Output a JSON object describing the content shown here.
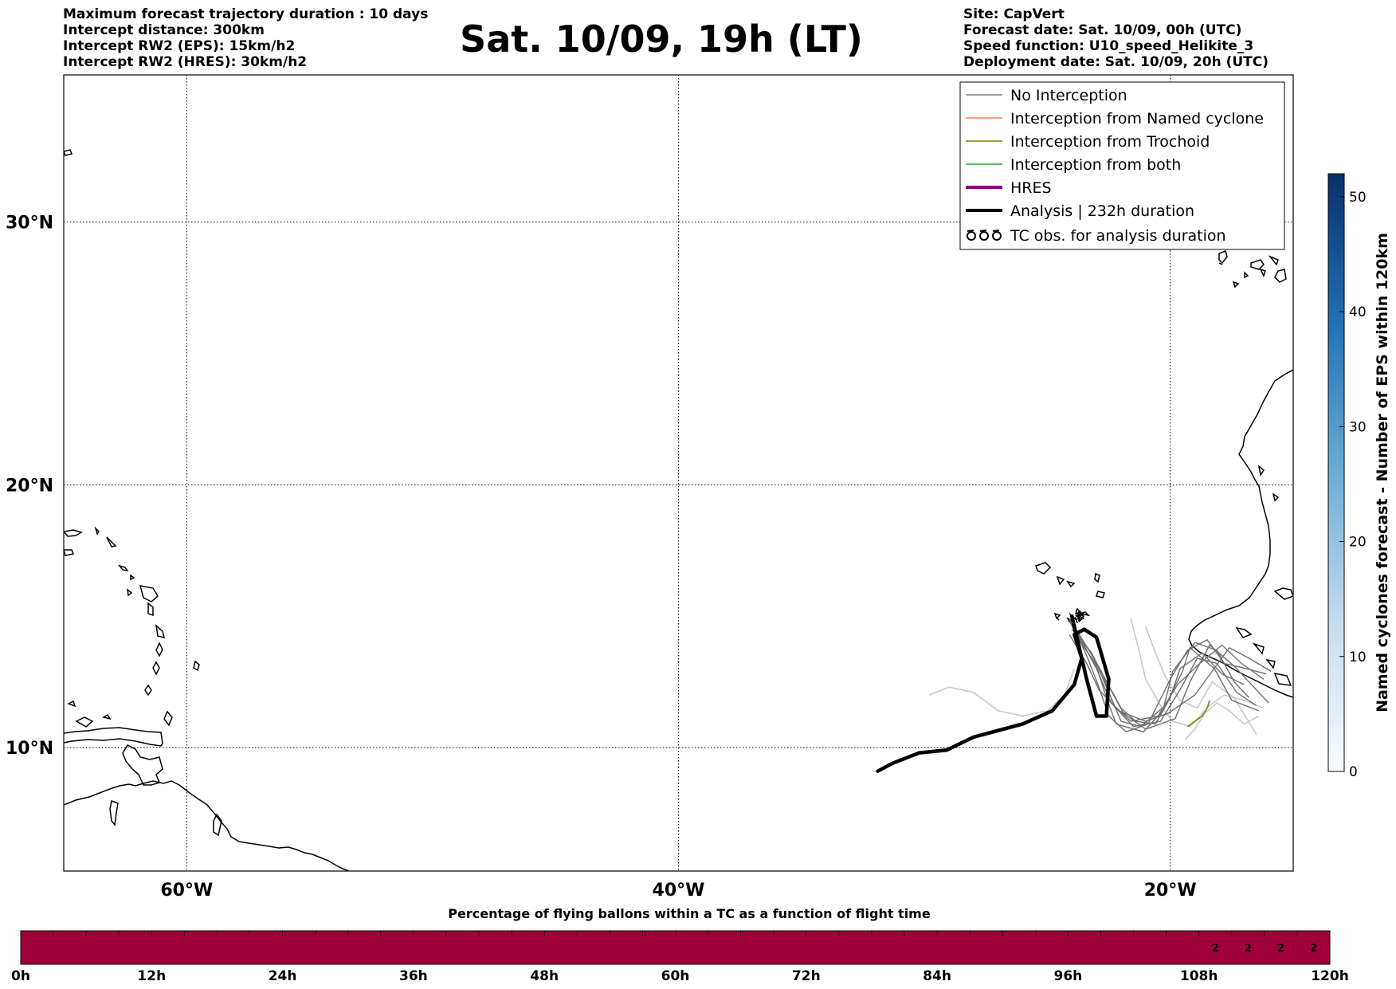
{
  "header": {
    "left": [
      "Maximum forecast trajectory duration : 10 days",
      "Intercept distance: 300km",
      "Intercept RW2 (EPS):  15km/h2",
      "Intercept RW2 (HRES): 30km/h2"
    ],
    "title": "Sat. 10/09, 19h (LT)",
    "right": [
      "Site: CapVert",
      "Forecast date: Sat. 10/09, 00h (UTC)",
      "Speed function: U10_speed_Helikite_3",
      "Deployment date: Sat. 10/09, 20h (UTC)"
    ]
  },
  "map": {
    "lon_range": [
      -65,
      -15
    ],
    "lat_range": [
      5.3,
      35.6
    ],
    "lon_ticks": [
      {
        "lon": -60,
        "label": "60°W"
      },
      {
        "lon": -40,
        "label": "40°W"
      },
      {
        "lon": -20,
        "label": "20°W"
      }
    ],
    "lat_ticks": [
      {
        "lat": 30,
        "label": "30°N"
      },
      {
        "lat": 20,
        "label": "20°N"
      },
      {
        "lat": 10,
        "label": "10°N"
      }
    ],
    "grid": true
  },
  "legend": {
    "placement": "top-right",
    "items": [
      {
        "label": "No Interception",
        "color": "#808080",
        "style": "thin-line"
      },
      {
        "label": "Interception from Named cyclone",
        "color": "#ff7f50",
        "style": "thin-line"
      },
      {
        "label": "Interception from Trochoid",
        "color": "#808000",
        "style": "thin-line"
      },
      {
        "label": "Interception from both",
        "color": "#2ca02c",
        "style": "thin-line"
      },
      {
        "label": "HRES",
        "color": "#8b008b",
        "style": "thick-line"
      },
      {
        "label": "Analysis | 232h duration",
        "color": "#000000",
        "style": "thick-line"
      },
      {
        "label": "TC obs. for analysis duration",
        "color": "#000000",
        "style": "tc-symbols"
      }
    ]
  },
  "chart_data": [
    {
      "type": "line",
      "name": "trajectories",
      "analysis_track": [
        [
          -31.9,
          9.1
        ],
        [
          -31.3,
          9.4
        ],
        [
          -30.2,
          9.8
        ],
        [
          -29.1,
          9.9
        ],
        [
          -28.0,
          10.4
        ],
        [
          -26.0,
          10.9
        ],
        [
          -24.8,
          11.4
        ],
        [
          -23.9,
          12.4
        ],
        [
          -23.6,
          13.4
        ],
        [
          -23.9,
          14.3
        ],
        [
          -23.5,
          14.5
        ],
        [
          -23.0,
          14.2
        ],
        [
          -22.5,
          12.6
        ],
        [
          -22.6,
          11.2
        ],
        [
          -23.0,
          11.2
        ],
        [
          -23.4,
          12.6
        ],
        [
          -23.8,
          14.2
        ],
        [
          -24.0,
          15.0
        ]
      ],
      "named_cyclone_tracks": [],
      "hres_tracks": [],
      "no_interception_tracks": [
        [
          [
            -24.1,
            14.9
          ],
          [
            -23.5,
            13.8
          ],
          [
            -22.8,
            12.9
          ],
          [
            -22.3,
            11.6
          ],
          [
            -21.5,
            10.8
          ],
          [
            -20.4,
            11.0
          ],
          [
            -19.6,
            12.2
          ],
          [
            -18.9,
            13.4
          ],
          [
            -18.1,
            13.2
          ],
          [
            -17.3,
            12.1
          ],
          [
            -16.5,
            11.6
          ]
        ],
        [
          [
            -24.0,
            14.6
          ],
          [
            -23.2,
            13.6
          ],
          [
            -22.6,
            12.5
          ],
          [
            -21.9,
            11.3
          ],
          [
            -21.0,
            10.7
          ],
          [
            -19.8,
            11.1
          ],
          [
            -19.2,
            12.5
          ],
          [
            -18.4,
            13.9
          ],
          [
            -17.4,
            13.1
          ],
          [
            -16.6,
            12.3
          ],
          [
            -16.0,
            11.7
          ]
        ],
        [
          [
            -24.1,
            14.8
          ],
          [
            -23.6,
            14.0
          ],
          [
            -23.0,
            13.1
          ],
          [
            -22.6,
            11.9
          ],
          [
            -22.2,
            10.9
          ],
          [
            -21.1,
            10.6
          ],
          [
            -20.3,
            11.4
          ],
          [
            -19.9,
            12.9
          ],
          [
            -19.0,
            14.0
          ],
          [
            -18.1,
            13.7
          ],
          [
            -17.4,
            12.5
          ],
          [
            -16.8,
            11.9
          ]
        ],
        [
          [
            -24.0,
            14.5
          ],
          [
            -23.3,
            13.7
          ],
          [
            -22.7,
            12.7
          ],
          [
            -22.0,
            11.5
          ],
          [
            -21.4,
            11.0
          ],
          [
            -20.6,
            10.9
          ],
          [
            -20.0,
            11.9
          ],
          [
            -19.6,
            13.0
          ],
          [
            -18.7,
            13.6
          ],
          [
            -17.9,
            12.8
          ],
          [
            -17.0,
            12.4
          ]
        ],
        [
          [
            -24.0,
            14.7
          ],
          [
            -23.4,
            13.5
          ],
          [
            -22.9,
            12.3
          ],
          [
            -22.5,
            11.2
          ],
          [
            -21.8,
            10.6
          ],
          [
            -20.9,
            10.9
          ],
          [
            -20.0,
            12.6
          ],
          [
            -19.3,
            13.7
          ],
          [
            -18.5,
            14.1
          ],
          [
            -17.8,
            13.2
          ],
          [
            -16.9,
            13.0
          ],
          [
            -16.1,
            12.8
          ]
        ],
        [
          [
            -23.9,
            14.6
          ],
          [
            -23.1,
            13.4
          ],
          [
            -22.5,
            12.1
          ],
          [
            -22.0,
            11.0
          ],
          [
            -21.2,
            10.8
          ],
          [
            -20.2,
            11.6
          ],
          [
            -19.5,
            12.9
          ],
          [
            -19.2,
            13.8
          ],
          [
            -18.2,
            13.0
          ],
          [
            -17.5,
            11.8
          ],
          [
            -16.4,
            11.4
          ]
        ],
        [
          [
            -23.8,
            14.4
          ],
          [
            -23.0,
            13.0
          ],
          [
            -22.4,
            11.7
          ],
          [
            -21.6,
            11.0
          ],
          [
            -20.5,
            11.2
          ],
          [
            -19.7,
            12.4
          ],
          [
            -18.8,
            13.2
          ],
          [
            -17.9,
            13.9
          ],
          [
            -17.1,
            13.2
          ],
          [
            -16.2,
            12.6
          ]
        ],
        [
          [
            -24.1,
            14.3
          ],
          [
            -23.4,
            13.2
          ],
          [
            -22.9,
            12.2
          ],
          [
            -22.1,
            11.4
          ],
          [
            -21.0,
            11.0
          ],
          [
            -20.1,
            11.3
          ],
          [
            -19.0,
            12.0
          ],
          [
            -18.3,
            12.9
          ],
          [
            -17.6,
            13.8
          ],
          [
            -16.8,
            13.4
          ],
          [
            -15.9,
            12.9
          ]
        ]
      ],
      "no_interception_light_tracks": [
        [
          [
            -29.8,
            12.0
          ],
          [
            -29.0,
            12.3
          ],
          [
            -28.0,
            12.1
          ],
          [
            -27.0,
            11.4
          ],
          [
            -26.0,
            11.2
          ],
          [
            -25.0,
            11.4
          ],
          [
            -24.3,
            12.0
          ],
          [
            -23.9,
            13.0
          ]
        ],
        [
          [
            -21.6,
            14.9
          ],
          [
            -21.3,
            13.8
          ],
          [
            -21.0,
            12.6
          ],
          [
            -20.4,
            11.6
          ],
          [
            -19.9,
            11.0
          ],
          [
            -19.2,
            10.8
          ],
          [
            -18.4,
            11.6
          ],
          [
            -17.8,
            12.0
          ],
          [
            -17.0,
            11.8
          ],
          [
            -16.2,
            11.5
          ]
        ],
        [
          [
            -19.4,
            10.3
          ],
          [
            -19.0,
            10.7
          ],
          [
            -18.6,
            11.3
          ],
          [
            -18.1,
            11.7
          ],
          [
            -17.6,
            11.4
          ],
          [
            -17.0,
            10.9
          ],
          [
            -16.4,
            11.2
          ]
        ],
        [
          [
            -21.0,
            14.6
          ],
          [
            -20.6,
            13.6
          ],
          [
            -20.2,
            12.7
          ],
          [
            -19.6,
            11.8
          ],
          [
            -18.9,
            11.5
          ],
          [
            -18.3,
            12.5
          ],
          [
            -17.4,
            11.9
          ],
          [
            -16.5,
            10.5
          ]
        ]
      ],
      "trochoid_tracks": [
        [
          [
            -19.3,
            10.8
          ],
          [
            -19.0,
            11.0
          ],
          [
            -18.7,
            11.2
          ],
          [
            -18.5,
            11.5
          ],
          [
            -18.4,
            11.8
          ]
        ]
      ]
    },
    {
      "type": "heatmap",
      "name": "colorbar",
      "label": "Named cyclones forecast - Number of EPS within 120km",
      "range": [
        0,
        52
      ],
      "ticks": [
        0,
        10,
        20,
        30,
        40,
        50
      ]
    },
    {
      "type": "heatmap",
      "name": "flight-percentage",
      "title": "Percentage of flying ballons within a TC as a function of flight time",
      "color": "#a0003a",
      "x_range_hours": [
        0,
        120
      ],
      "cell_hours": 3,
      "tick_labels": [
        "0h",
        "12h",
        "24h",
        "36h",
        "48h",
        "60h",
        "72h",
        "84h",
        "96h",
        "108h",
        "120h"
      ],
      "cell_labels": [
        {
          "hour": 111,
          "value": "2"
        },
        {
          "hour": 114,
          "value": "2"
        },
        {
          "hour": 117,
          "value": "2"
        },
        {
          "hour": 120,
          "value": "2"
        }
      ]
    }
  ]
}
